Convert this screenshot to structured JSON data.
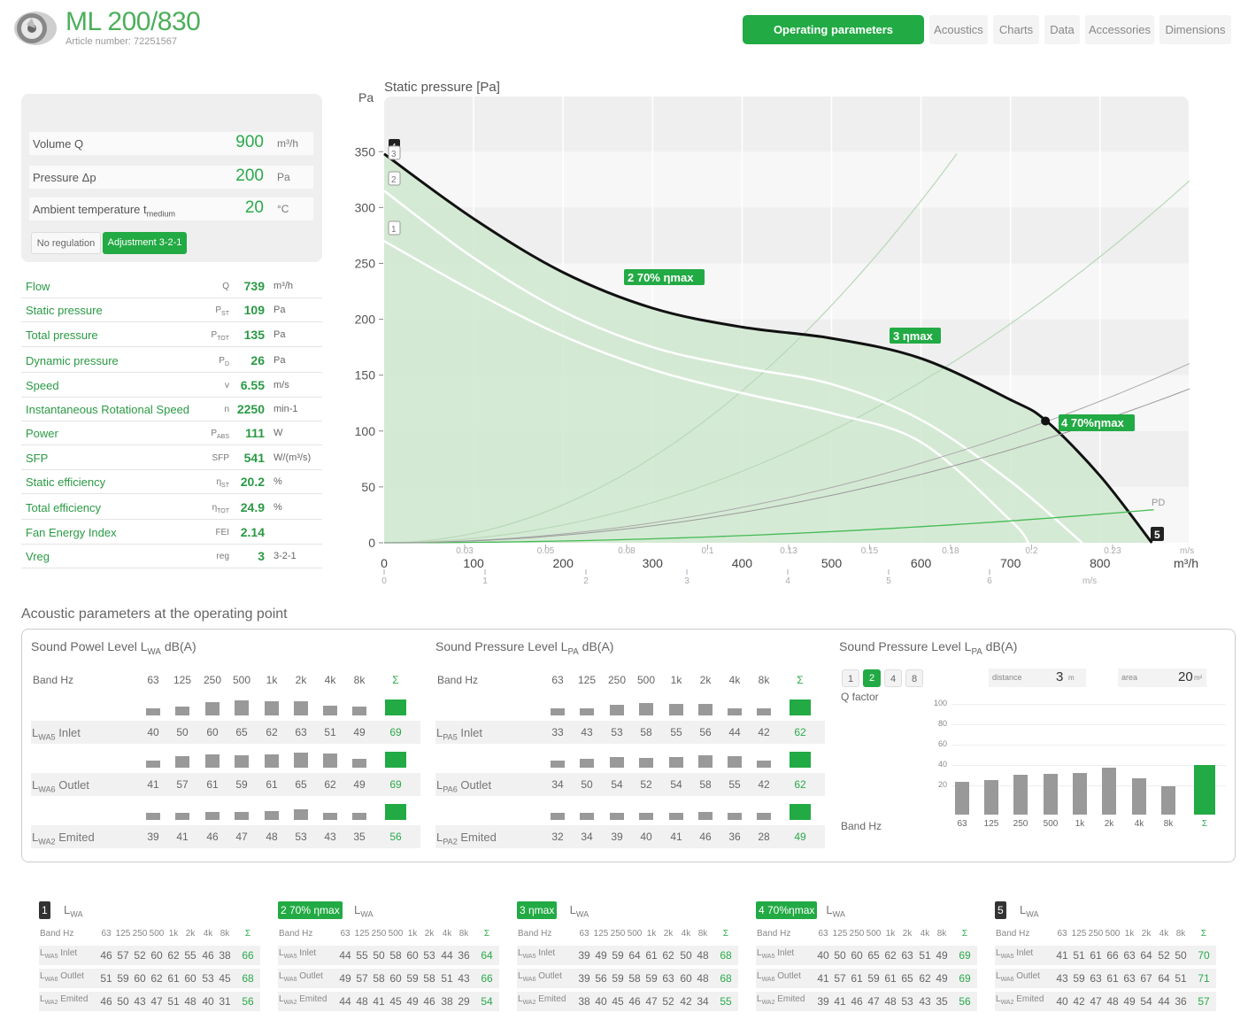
{
  "header": {
    "title": "ML 200/830",
    "article": "Article number: 72251567",
    "tabs": [
      "Operating parameters",
      "Acoustics",
      "Charts",
      "Data",
      "Accessories",
      "Dimensions"
    ]
  },
  "inputs": {
    "volume": {
      "label": "Volume Q",
      "value": "900",
      "unit": "m³/h"
    },
    "pressure": {
      "label": "Pressure Δp",
      "value": "200",
      "unit": "Pa"
    },
    "ambient": {
      "label": "Ambient temperature t",
      "sub": "medium",
      "value": "20",
      "unit": "°C"
    },
    "btn_noreg": "No regulation",
    "btn_adjust": "Adjustment 3-2-1"
  },
  "params": [
    {
      "name": "Flow",
      "sym": "Q",
      "value": "739",
      "unit": "m³/h"
    },
    {
      "name": "Static pressure",
      "sym": "PST",
      "value": "109",
      "unit": "Pa"
    },
    {
      "name": "Total pressure",
      "sym": "PTOT",
      "value": "135",
      "unit": "Pa"
    },
    {
      "name": "Dynamic pressure",
      "sym": "PD",
      "value": "26",
      "unit": "Pa"
    },
    {
      "name": "Speed",
      "sym": "v",
      "value": "6.55",
      "unit": "m/s"
    },
    {
      "name": "Instantaneous Rotational Speed",
      "sym": "n",
      "value": "2250",
      "unit": "min-1"
    },
    {
      "name": "Power",
      "sym": "PABS",
      "value": "111",
      "unit": "W"
    },
    {
      "name": "SFP",
      "sym": "SFP",
      "value": "541",
      "unit": "W/(m³/s)"
    },
    {
      "name": "Static efficiency",
      "sym": "ηST",
      "value": "20.2",
      "unit": "%"
    },
    {
      "name": "Total efficiency",
      "sym": "ηTOT",
      "value": "24.9",
      "unit": "%"
    },
    {
      "name": "Fan Energy Index",
      "sym": "FEI",
      "value": "2.14",
      "unit": ""
    },
    {
      "name": "Vreg",
      "sym": "reg",
      "value": "3",
      "unit": "3-2-1"
    }
  ],
  "chart": {
    "title": "Static pressure [Pa]",
    "y_unit": "Pa",
    "x_unit": "m³/h",
    "ms_unit": "m/s",
    "pd_label": "PD",
    "point_labels": [
      "2 70% ηmax",
      "3 ηmax",
      "4 70%ηmax",
      "5",
      "1",
      "2",
      "3",
      "4",
      "1"
    ]
  },
  "chart_data": {
    "type": "line",
    "title": "Static pressure [Pa]",
    "xlabel": "m³/h",
    "ylabel": "Pa",
    "xlim": [
      0,
      900
    ],
    "ylim": [
      0,
      390
    ],
    "yticks": [
      0,
      50,
      100,
      150,
      200,
      250,
      300,
      350
    ],
    "xticks": [
      0,
      100,
      200,
      300,
      400,
      500,
      600,
      700,
      800
    ],
    "top_ms_ticks": [
      "0.03",
      "0.05",
      "0.08",
      "0.1",
      "0.13",
      "0.15",
      "0.18",
      "0.2",
      "0.23"
    ],
    "bottom_ms_ticks": [
      "0",
      "1",
      "2",
      "3",
      "4",
      "5",
      "6"
    ],
    "series": [
      {
        "name": "3",
        "x": [
          0,
          100,
          200,
          300,
          400,
          500,
          600,
          700,
          740,
          800,
          858
        ],
        "y": [
          348,
          290,
          242,
          210,
          193,
          183,
          165,
          128,
          109,
          60,
          0
        ]
      },
      {
        "name": "2",
        "x": [
          0,
          100,
          200,
          300,
          400,
          500,
          600,
          700,
          780
        ],
        "y": [
          315,
          255,
          207,
          175,
          157,
          142,
          110,
          55,
          0
        ]
      },
      {
        "name": "1",
        "x": [
          0,
          100,
          200,
          300,
          400,
          500,
          600,
          700,
          720
        ],
        "y": [
          270,
          225,
          185,
          155,
          134,
          116,
          90,
          20,
          0
        ]
      }
    ],
    "operating_point": {
      "x": 739,
      "y": 109
    }
  },
  "acoustics": {
    "title": "Acoustic parameters at the operating point",
    "bands": [
      "63",
      "125",
      "250",
      "500",
      "1k",
      "2k",
      "4k",
      "8k",
      "Σ"
    ],
    "band_label": "Band Hz",
    "power": {
      "title": "Sound Powel Level L",
      "sub": "WA",
      "suffix": " dB(A)",
      "rows": [
        {
          "label": "Inlet",
          "sub": "WA5",
          "vals": [
            "40",
            "50",
            "60",
            "65",
            "62",
            "63",
            "51",
            "49",
            "69"
          ]
        },
        {
          "label": "Outlet",
          "sub": "WA6",
          "vals": [
            "41",
            "57",
            "61",
            "59",
            "61",
            "65",
            "62",
            "49",
            "69"
          ]
        },
        {
          "label": "Emited",
          "sub": "WA2",
          "vals": [
            "39",
            "41",
            "46",
            "47",
            "48",
            "53",
            "43",
            "35",
            "56"
          ]
        }
      ]
    },
    "pressure": {
      "title": "Sound Pressure Level L",
      "sub": "PA",
      "suffix": " dB(A)",
      "rows": [
        {
          "label": "Inlet",
          "sub": "PA5",
          "vals": [
            "33",
            "43",
            "53",
            "58",
            "55",
            "56",
            "44",
            "42",
            "62"
          ]
        },
        {
          "label": "Outlet",
          "sub": "PA6",
          "vals": [
            "34",
            "50",
            "54",
            "52",
            "54",
            "58",
            "55",
            "42",
            "62"
          ]
        },
        {
          "label": "Emited",
          "sub": "PA2",
          "vals": [
            "32",
            "34",
            "39",
            "40",
            "41",
            "46",
            "36",
            "28",
            "49"
          ]
        }
      ]
    },
    "pressure2": {
      "title": "Sound Pressure Level L",
      "sub": "PA",
      "suffix": " dB(A)",
      "q_options": [
        "1",
        "2",
        "4",
        "8"
      ],
      "q_selected": "2",
      "q_label": "Q factor",
      "distance_label": "distance",
      "distance": "3",
      "distance_unit": "m",
      "area_label": "area",
      "area": "20",
      "area_unit": "m²",
      "yticks": [
        "100",
        "80",
        "60",
        "40",
        "20"
      ],
      "values": [
        32,
        34,
        39,
        40,
        41,
        46,
        36,
        28,
        49
      ]
    }
  },
  "mini_tables": [
    {
      "tag": "1",
      "rows": [
        [
          "46",
          "57",
          "52",
          "60",
          "62",
          "55",
          "46",
          "38",
          "66"
        ],
        [
          "51",
          "59",
          "60",
          "62",
          "61",
          "60",
          "53",
          "45",
          "68"
        ],
        [
          "46",
          "50",
          "43",
          "47",
          "51",
          "48",
          "40",
          "31",
          "56"
        ]
      ]
    },
    {
      "tag": "2 70% ηmax",
      "rows": [
        [
          "44",
          "55",
          "50",
          "58",
          "60",
          "53",
          "44",
          "36",
          "64"
        ],
        [
          "49",
          "57",
          "58",
          "60",
          "59",
          "58",
          "51",
          "43",
          "66"
        ],
        [
          "44",
          "48",
          "41",
          "45",
          "49",
          "46",
          "38",
          "29",
          "54"
        ]
      ]
    },
    {
      "tag": "3 ηmax",
      "rows": [
        [
          "39",
          "49",
          "59",
          "64",
          "61",
          "62",
          "50",
          "48",
          "68"
        ],
        [
          "39",
          "56",
          "59",
          "58",
          "59",
          "63",
          "60",
          "48",
          "68"
        ],
        [
          "38",
          "40",
          "45",
          "46",
          "47",
          "52",
          "42",
          "34",
          "55"
        ]
      ]
    },
    {
      "tag": "4 70%ηmax",
      "rows": [
        [
          "40",
          "50",
          "60",
          "65",
          "62",
          "63",
          "51",
          "49",
          "69"
        ],
        [
          "41",
          "57",
          "61",
          "59",
          "61",
          "65",
          "62",
          "49",
          "69"
        ],
        [
          "39",
          "41",
          "46",
          "47",
          "48",
          "53",
          "43",
          "35",
          "56"
        ]
      ]
    },
    {
      "tag": "5",
      "rows": [
        [
          "41",
          "51",
          "61",
          "66",
          "63",
          "64",
          "52",
          "50",
          "70"
        ],
        [
          "43",
          "59",
          "63",
          "61",
          "63",
          "67",
          "64",
          "51",
          "71"
        ],
        [
          "40",
          "42",
          "47",
          "48",
          "49",
          "54",
          "44",
          "36",
          "57"
        ]
      ]
    }
  ],
  "mini_labels": {
    "lwa": "L",
    "lwa_sub": "WA",
    "band": "Band Hz",
    "inlet": "Inlet",
    "outlet": "Outlet",
    "emited": "Emited",
    "s5": "WA5",
    "s6": "WA6",
    "s2": "WA2"
  }
}
